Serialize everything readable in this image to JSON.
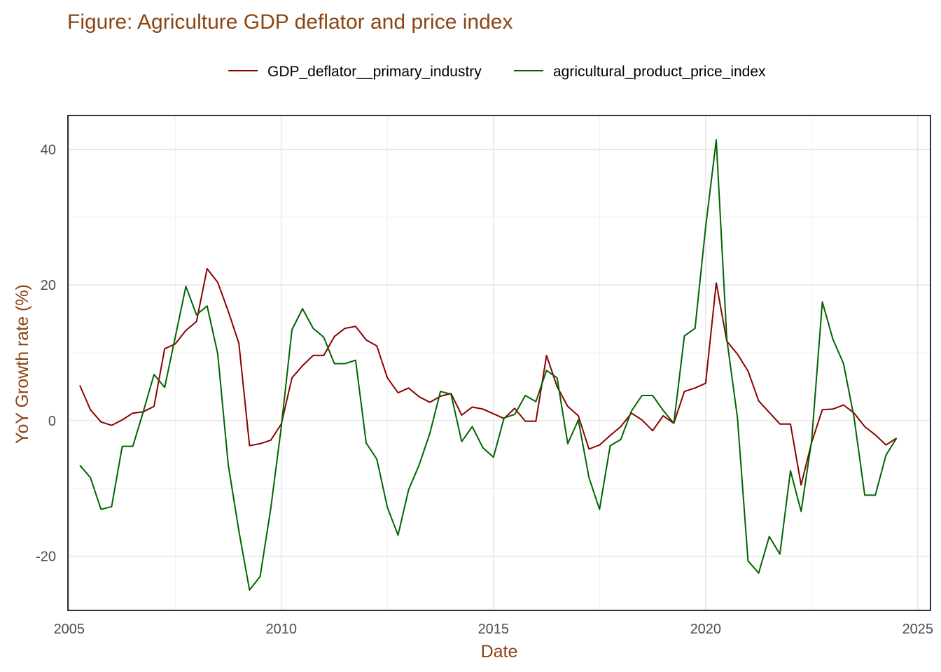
{
  "chart_data": {
    "type": "line",
    "title": "Figure: Agriculture GDP deflator and price index",
    "xlabel": "Date",
    "ylabel": "YoY Growth rate (%)",
    "xlim": [
      2004.97,
      2025.3
    ],
    "ylim": [
      -28,
      45
    ],
    "x_ticks": [
      2005,
      2010,
      2015,
      2020,
      2025
    ],
    "y_ticks": [
      -20,
      0,
      20,
      40
    ],
    "grid": true,
    "legend_position": "top",
    "series": [
      {
        "name": "GDP_deflator__primary_industry",
        "color": "#8B0000",
        "x": [
          2005.25,
          2005.5,
          2005.75,
          2006.0,
          2006.25,
          2006.5,
          2006.75,
          2007.0,
          2007.25,
          2007.5,
          2007.75,
          2008.0,
          2008.25,
          2008.5,
          2008.75,
          2009.0,
          2009.25,
          2009.5,
          2009.75,
          2010.0,
          2010.25,
          2010.5,
          2010.75,
          2011.0,
          2011.25,
          2011.5,
          2011.75,
          2012.0,
          2012.25,
          2012.5,
          2012.75,
          2013.0,
          2013.25,
          2013.5,
          2013.75,
          2014.0,
          2014.25,
          2014.5,
          2014.75,
          2015.0,
          2015.25,
          2015.5,
          2015.75,
          2016.0,
          2016.25,
          2016.5,
          2016.75,
          2017.0,
          2017.25,
          2017.5,
          2017.75,
          2018.0,
          2018.25,
          2018.5,
          2018.75,
          2019.0,
          2019.25,
          2019.5,
          2019.75,
          2020.0,
          2020.25,
          2020.5,
          2020.75,
          2021.0,
          2021.25,
          2021.5,
          2021.75,
          2022.0,
          2022.25,
          2022.5,
          2022.75,
          2023.0,
          2023.25,
          2023.5,
          2023.75,
          2024.0,
          2024.25,
          2024.5
        ],
        "y": [
          5.2,
          1.6,
          -0.2,
          -0.7,
          0.1,
          1.1,
          1.3,
          2.1,
          10.6,
          11.3,
          13.3,
          14.6,
          22.4,
          20.4,
          16.1,
          11.4,
          -3.7,
          -3.4,
          -2.9,
          -0.5,
          6.3,
          8.1,
          9.6,
          9.6,
          12.4,
          13.6,
          13.9,
          11.9,
          11.0,
          6.3,
          4.1,
          4.8,
          3.5,
          2.7,
          3.6,
          4.0,
          0.8,
          2.0,
          1.7,
          1.0,
          0.3,
          1.8,
          -0.1,
          -0.1,
          9.6,
          5.0,
          2.1,
          0.7,
          -4.2,
          -3.6,
          -2.2,
          -0.9,
          1.1,
          0.1,
          -1.5,
          0.7,
          -0.4,
          4.3,
          4.8,
          5.5,
          20.3,
          11.7,
          9.8,
          7.3,
          2.9,
          1.2,
          -0.5,
          -0.5,
          -9.5,
          -3.2,
          1.6,
          1.7,
          2.3,
          1.1,
          -0.9,
          -2.1,
          -3.6,
          -2.6
        ]
      },
      {
        "name": "agricultural_product_price_index",
        "color": "#006400",
        "x": [
          2005.25,
          2005.5,
          2005.75,
          2006.0,
          2006.25,
          2006.5,
          2006.75,
          2007.0,
          2007.25,
          2007.5,
          2007.75,
          2008.0,
          2008.25,
          2008.5,
          2008.75,
          2009.0,
          2009.25,
          2009.5,
          2009.75,
          2010.0,
          2010.25,
          2010.5,
          2010.75,
          2011.0,
          2011.25,
          2011.5,
          2011.75,
          2012.0,
          2012.25,
          2012.5,
          2012.75,
          2013.0,
          2013.25,
          2013.5,
          2013.75,
          2014.0,
          2014.25,
          2014.5,
          2014.75,
          2015.0,
          2015.25,
          2015.5,
          2015.75,
          2016.0,
          2016.25,
          2016.5,
          2016.75,
          2017.0,
          2017.25,
          2017.5,
          2017.75,
          2018.0,
          2018.25,
          2018.5,
          2018.75,
          2019.0,
          2019.25,
          2019.5,
          2019.75,
          2020.0,
          2020.25,
          2020.5,
          2020.75,
          2021.0,
          2021.25,
          2021.5,
          2021.75,
          2022.0,
          2022.25,
          2022.5,
          2022.75,
          2023.0,
          2023.25,
          2023.5,
          2023.75,
          2024.0,
          2024.25,
          2024.5
        ],
        "y": [
          -6.6,
          -8.4,
          -13.1,
          -12.7,
          -3.8,
          -3.8,
          1.4,
          6.8,
          4.9,
          12.3,
          19.8,
          15.6,
          16.9,
          9.9,
          -6.6,
          -16.3,
          -25.0,
          -23.0,
          -13.0,
          -0.9,
          13.4,
          16.5,
          13.6,
          12.3,
          8.4,
          8.4,
          8.9,
          -3.3,
          -5.7,
          -12.8,
          -16.9,
          -10.2,
          -6.5,
          -1.9,
          4.3,
          3.9,
          -3.1,
          -0.9,
          -4.0,
          -5.4,
          0.4,
          0.9,
          3.7,
          2.8,
          7.4,
          6.3,
          -3.4,
          0.1,
          -8.4,
          -13.1,
          -3.7,
          -2.8,
          1.4,
          3.7,
          3.7,
          1.5,
          -0.4,
          12.5,
          13.6,
          28.5,
          41.4,
          12.0,
          0.4,
          -20.7,
          -22.5,
          -17.1,
          -19.7,
          -7.4,
          -13.4,
          -2.9,
          17.5,
          12.0,
          8.4,
          0.4,
          -11.0,
          -11.0,
          -5.1,
          -2.6
        ]
      }
    ]
  }
}
